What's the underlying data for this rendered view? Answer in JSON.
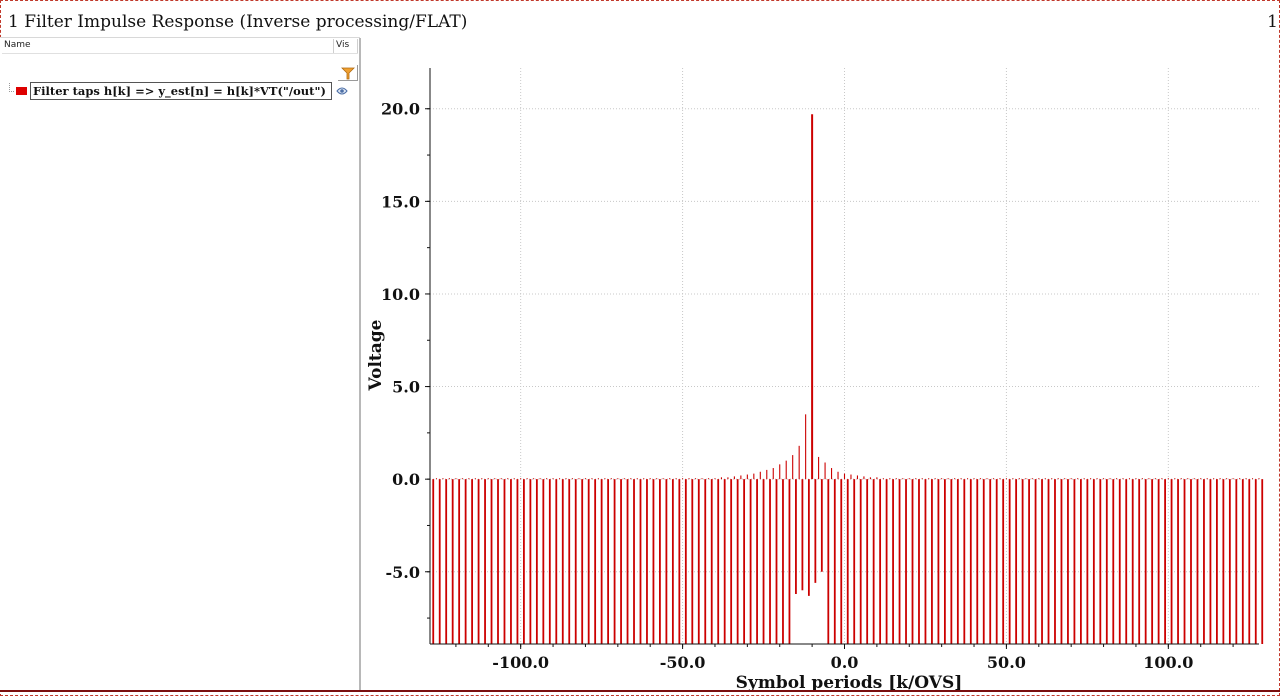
{
  "window": {
    "title": "1 Filter Impulse Response (Inverse processing/FLAT)",
    "page_num": "1"
  },
  "legend_panel": {
    "col_name": "Name",
    "col_vis": "Vis",
    "filter_icon": "filter-funnel-icon",
    "items": [
      {
        "label": "Filter taps h[k] => y_est[n] = h[k]*VT(\"/out\")",
        "color": "#dd0000",
        "visible_icon": "eye-icon"
      }
    ]
  },
  "chart_data": {
    "type": "bar",
    "description_type": "stem",
    "xlabel": "Symbol periods [k/OVS]",
    "ylabel": "Voltage",
    "xlim": [
      -128,
      128
    ],
    "ylim": [
      -8.9,
      22.2
    ],
    "x_ticks": [
      -100.0,
      -50.0,
      0.0,
      50.0,
      100.0
    ],
    "x_tick_labels": [
      "-100.0",
      "-50.0",
      "0.0",
      "50.0",
      "100.0"
    ],
    "y_ticks": [
      -5.0,
      0.0,
      5.0,
      10.0,
      15.0,
      20.0
    ],
    "y_tick_labels": [
      "-5.0",
      "0.0",
      "5.0",
      "10.0",
      "15.0",
      "20.0"
    ],
    "grid": true,
    "series": [
      {
        "color": "#cc0000",
        "x_start": -127,
        "x_step": 1,
        "values": [
          -8.9,
          0.05,
          -8.9,
          0.05,
          -8.9,
          0.05,
          -8.9,
          0.05,
          -8.9,
          0.05,
          -8.9,
          0.05,
          -8.9,
          0.05,
          -8.9,
          0.05,
          -8.9,
          0.05,
          -8.9,
          0.05,
          -8.9,
          0.05,
          -8.9,
          0.05,
          -8.9,
          0.05,
          -8.9,
          0.05,
          -8.9,
          0.05,
          -8.9,
          0.05,
          -8.9,
          0.05,
          -8.9,
          0.05,
          -8.9,
          0.05,
          -8.9,
          0.05,
          -8.9,
          0.05,
          -8.9,
          0.05,
          -8.9,
          0.05,
          -8.9,
          0.05,
          -8.9,
          0.05,
          -8.9,
          0.05,
          -8.9,
          0.05,
          -8.9,
          0.05,
          -8.9,
          0.05,
          -8.9,
          0.05,
          -8.9,
          0.05,
          -8.9,
          0.05,
          -8.9,
          0.05,
          -8.9,
          0.05,
          -8.9,
          0.05,
          -8.9,
          0.05,
          -8.9,
          0.05,
          -8.9,
          0.05,
          -8.9,
          0.05,
          -8.9,
          0.05,
          -8.9,
          0.05,
          -8.9,
          0.05,
          -8.9,
          0.05,
          -8.9,
          0.05,
          -8.9,
          0.1,
          -8.9,
          0.1,
          -8.9,
          0.15,
          -8.9,
          0.2,
          -8.9,
          0.25,
          -8.9,
          0.3,
          -8.9,
          0.4,
          -8.9,
          0.5,
          -8.9,
          0.6,
          -8.9,
          0.8,
          -8.9,
          1.0,
          -8.9,
          1.3,
          -6.2,
          1.8,
          -6.0,
          3.5,
          -6.3,
          19.7,
          -5.6,
          1.2,
          -5.0,
          0.9,
          -8.9,
          0.6,
          -8.9,
          0.4,
          -8.9,
          0.3,
          -8.9,
          0.25,
          -8.9,
          0.2,
          -8.9,
          0.15,
          -8.9,
          0.1,
          -8.9,
          0.1,
          -8.9,
          0.05,
          -8.9,
          0.05,
          -8.9,
          0.05,
          -8.9,
          0.05,
          -8.9,
          0.05,
          -8.9,
          0.05,
          -8.9,
          0.05,
          -8.9,
          0.05,
          -8.9,
          0.05,
          -8.9,
          0.05,
          -8.9,
          0.05,
          -8.9,
          0.05,
          -8.9,
          0.05,
          -8.9,
          0.05,
          -8.9,
          0.05,
          -8.9,
          0.05,
          -8.9,
          0.05,
          -8.9,
          0.05,
          -8.9,
          0.05,
          -8.9,
          0.05,
          -8.9,
          0.05,
          -8.9,
          0.05,
          -8.9,
          0.05,
          -8.9,
          0.05,
          -8.9,
          0.05,
          -8.9,
          0.05,
          -8.9,
          0.05,
          -8.9,
          0.05,
          -8.9,
          0.05,
          -8.9,
          0.05,
          -8.9,
          0.05,
          -8.9,
          0.05,
          -8.9,
          0.05,
          -8.9,
          0.05,
          -8.9,
          0.05,
          -8.9,
          0.05,
          -8.9,
          0.05,
          -8.9,
          0.05,
          -8.9,
          0.05,
          -8.9,
          0.05,
          -8.9,
          0.05,
          -8.9,
          0.05,
          -8.9,
          0.05,
          -8.9,
          0.05,
          -8.9,
          0.05,
          -8.9,
          0.05,
          -8.9,
          0.05,
          -8.9,
          0.05,
          -8.9,
          0.05,
          -8.9,
          0.05,
          -8.9,
          0.05,
          -8.9,
          0.05,
          -8.9,
          0.05,
          -8.9,
          0.05,
          -8.9,
          0.05,
          -8.9,
          0.05,
          -8.9,
          0.05,
          -8.9,
          0.05,
          -8.9,
          0.05,
          -8.9
        ]
      }
    ]
  }
}
